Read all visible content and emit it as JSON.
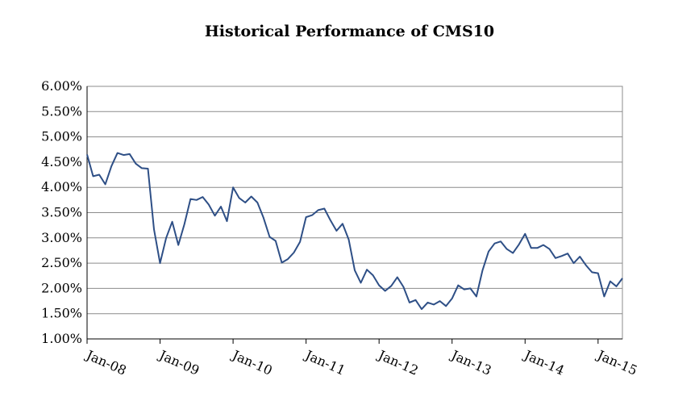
{
  "chart_data": {
    "type": "line",
    "title": "Historical Performance of CMS10",
    "xlabel": "",
    "ylabel": "",
    "x_tick_labels": [
      "Jan-08",
      "Jan-09",
      "Jan-10",
      "Jan-11",
      "Jan-12",
      "Jan-13",
      "Jan-14",
      "Jan-15"
    ],
    "y_tick_labels": [
      "1.00%",
      "1.50%",
      "2.00%",
      "2.50%",
      "3.00%",
      "3.50%",
      "4.00%",
      "4.50%",
      "5.00%",
      "5.50%",
      "6.00%"
    ],
    "ylim": [
      1.0,
      6.0
    ],
    "xlim": [
      "2008-01",
      "2015-05"
    ],
    "grid": true,
    "line_color": "#2e4f86",
    "series": [
      {
        "x": [
          "2008-01",
          "2008-02",
          "2008-03",
          "2008-04",
          "2008-05",
          "2008-06",
          "2008-07",
          "2008-08",
          "2008-09",
          "2008-10",
          "2008-11",
          "2008-12",
          "2009-01",
          "2009-02",
          "2009-03",
          "2009-04",
          "2009-05",
          "2009-06",
          "2009-07",
          "2009-08",
          "2009-09",
          "2009-10",
          "2009-11",
          "2009-12",
          "2010-01",
          "2010-02",
          "2010-03",
          "2010-04",
          "2010-05",
          "2010-06",
          "2010-07",
          "2010-08",
          "2010-09",
          "2010-10",
          "2010-11",
          "2010-12",
          "2011-01",
          "2011-02",
          "2011-03",
          "2011-04",
          "2011-05",
          "2011-06",
          "2011-07",
          "2011-08",
          "2011-09",
          "2011-10",
          "2011-11",
          "2011-12",
          "2012-01",
          "2012-02",
          "2012-03",
          "2012-04",
          "2012-05",
          "2012-06",
          "2012-07",
          "2012-08",
          "2012-09",
          "2012-10",
          "2012-11",
          "2012-12",
          "2013-01",
          "2013-02",
          "2013-03",
          "2013-04",
          "2013-05",
          "2013-06",
          "2013-07",
          "2013-08",
          "2013-09",
          "2013-10",
          "2013-11",
          "2013-12",
          "2014-01",
          "2014-02",
          "2014-03",
          "2014-04",
          "2014-05",
          "2014-06",
          "2014-07",
          "2014-08",
          "2014-09",
          "2014-10",
          "2014-11",
          "2014-12",
          "2015-01",
          "2015-02",
          "2015-03",
          "2015-04",
          "2015-05"
        ],
        "values": [
          4.65,
          4.22,
          4.25,
          4.06,
          4.42,
          4.68,
          4.64,
          4.66,
          4.47,
          4.38,
          4.37,
          3.17,
          2.5,
          3.0,
          3.32,
          2.86,
          3.27,
          3.77,
          3.75,
          3.81,
          3.66,
          3.44,
          3.62,
          3.33,
          4.0,
          3.79,
          3.7,
          3.82,
          3.7,
          3.4,
          3.02,
          2.94,
          2.51,
          2.58,
          2.71,
          2.92,
          3.41,
          3.45,
          3.55,
          3.58,
          3.35,
          3.14,
          3.28,
          2.97,
          2.36,
          2.11,
          2.37,
          2.26,
          2.06,
          1.95,
          2.05,
          2.22,
          2.03,
          1.72,
          1.77,
          1.59,
          1.72,
          1.68,
          1.75,
          1.65,
          1.8,
          2.06,
          1.98,
          2.0,
          1.84,
          2.36,
          2.73,
          2.89,
          2.93,
          2.78,
          2.7,
          2.87,
          3.08,
          2.8,
          2.8,
          2.86,
          2.78,
          2.6,
          2.64,
          2.69,
          2.5,
          2.63,
          2.46,
          2.32,
          2.3,
          1.84,
          2.14,
          2.04,
          2.2
        ]
      }
    ]
  }
}
